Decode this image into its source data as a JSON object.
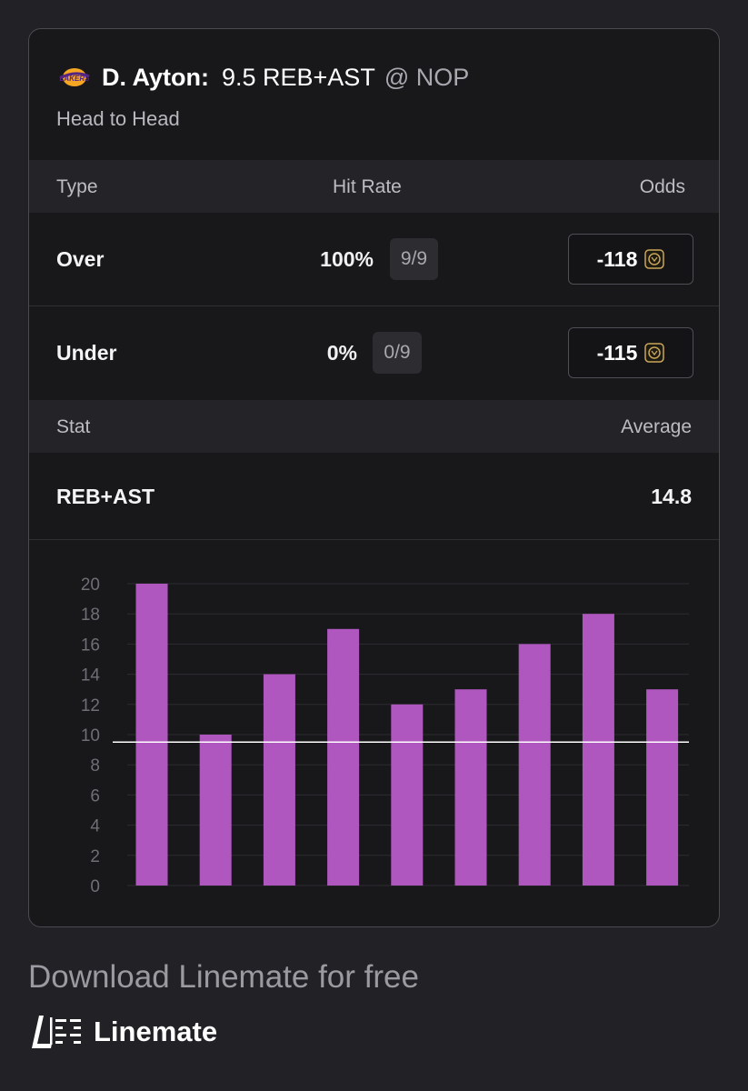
{
  "header": {
    "player": "D. Ayton:",
    "prop": "9.5 REB+AST",
    "opponent": "@ NOP",
    "subtitle": "Head to Head"
  },
  "hit_table": {
    "col_type": "Type",
    "col_hit_rate": "Hit Rate",
    "col_odds": "Odds",
    "rows": [
      {
        "type": "Over",
        "pct": "100%",
        "frac": "9/9",
        "odds": "-118"
      },
      {
        "type": "Under",
        "pct": "0%",
        "frac": "0/9",
        "odds": "-115"
      }
    ]
  },
  "stat_table": {
    "col_stat": "Stat",
    "col_avg": "Average",
    "stat": "REB+AST",
    "average": "14.8"
  },
  "chart_data": {
    "type": "bar",
    "values": [
      20,
      10,
      14,
      17,
      12,
      13,
      16,
      18,
      13
    ],
    "line_value": 9.5,
    "ylim": [
      0,
      20
    ],
    "yticks": [
      "0",
      "2",
      "4",
      "6",
      "8",
      "10",
      "12",
      "14",
      "16",
      "18",
      "20"
    ],
    "grid": true,
    "bar_color": "#b057bf",
    "line_color": "#ffffff"
  },
  "footer": {
    "download_text": "Download Linemate for free",
    "brand_name": "Linemate"
  },
  "icons": {
    "team_logo": "lakers-logo-icon",
    "sportsbook": "lion-head-icon"
  },
  "colors": {
    "background": "#222226",
    "card": "#18181b",
    "band": "#242428",
    "bar": "#b057bf"
  }
}
